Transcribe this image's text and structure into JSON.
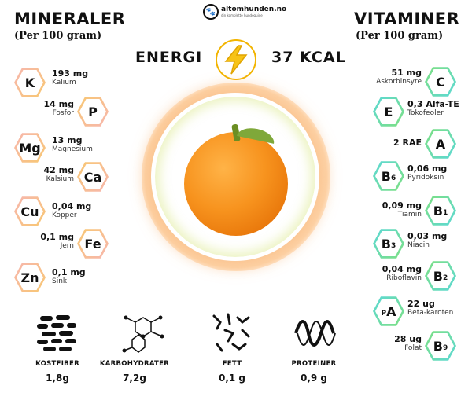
{
  "header": {
    "left_title": "MINERALER",
    "left_sub": "(Per 100 gram)",
    "right_title": "VITAMINER",
    "right_sub": "(Per 100 gram)",
    "logo_text": "altomhunden.no",
    "logo_tag": "din komplette hundeguide"
  },
  "energy": {
    "label": "ENERGI",
    "value": "37 KCAL"
  },
  "minerals": [
    {
      "symbol": "K",
      "amount": "193 mg",
      "name": "Kalium"
    },
    {
      "symbol": "P",
      "amount": "14 mg",
      "name": "Fosfor"
    },
    {
      "symbol": "Mg",
      "amount": "13 mg",
      "name": "Magnesium"
    },
    {
      "symbol": "Ca",
      "amount": "42 mg",
      "name": "Kalsium"
    },
    {
      "symbol": "Cu",
      "amount": "0,04 mg",
      "name": "Kopper"
    },
    {
      "symbol": "Fe",
      "amount": "0,1 mg",
      "name": "Jern"
    },
    {
      "symbol": "Zn",
      "amount": "0,1 mg",
      "name": "Sink"
    }
  ],
  "vitamins": [
    {
      "symbol": "C",
      "amount": "51 mg",
      "name": "Askorbinsyre"
    },
    {
      "symbol": "E",
      "amount": "0,3 Alfa-TE",
      "name": "Tokofeoler"
    },
    {
      "symbol": "A",
      "amount": "2 RAE",
      "name": ""
    },
    {
      "symbol": "B",
      "sub": "6",
      "amount": "0,06 mg",
      "name": "Pyridoksin"
    },
    {
      "symbol": "B",
      "sub": "1",
      "amount": "0,09 mg",
      "name": "Tiamin"
    },
    {
      "symbol": "B",
      "sub": "3",
      "amount": "0,03 mg",
      "name": "Niacin"
    },
    {
      "symbol": "B",
      "sub": "2",
      "amount": "0,04 mg",
      "name": "Riboflavin"
    },
    {
      "symbol": "A",
      "pre": "P",
      "amount": "22 ug",
      "name": "Beta-karoten"
    },
    {
      "symbol": "B",
      "sub": "9",
      "amount": "28 ug",
      "name": "Folat"
    }
  ],
  "macros": [
    {
      "label": "KOSTFIBER",
      "value": "1,8g",
      "icon": "fiber-icon"
    },
    {
      "label": "KARBOHYDRATER",
      "value": "7,2g",
      "icon": "carbohydrate-molecule-icon"
    },
    {
      "label": "FETT",
      "value": "0,1 g",
      "icon": "fat-molecule-icon"
    },
    {
      "label": "PROTEINER",
      "value": "0,9 g",
      "icon": "protein-helix-icon"
    }
  ],
  "colors": {
    "mineral_hex": [
      "#f7b6b0",
      "#f8c870"
    ],
    "vitamin_hex": [
      "#7fe07f",
      "#5ad8d8"
    ],
    "bolt": "#f2b400",
    "orange": "#f7931e"
  }
}
